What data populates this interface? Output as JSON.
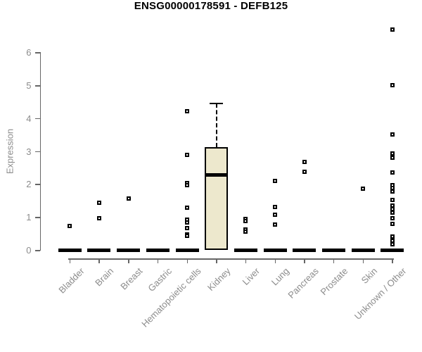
{
  "title": "ENSG00000178591 - DEFB125",
  "chart_data": {
    "type": "boxplot",
    "title": "ENSG00000178591 - DEFB125",
    "xlabel": "",
    "ylabel": "Expression",
    "ylim": [
      0,
      6.8
    ],
    "yticks": [
      0,
      1,
      2,
      3,
      4,
      5,
      6
    ],
    "grid": false,
    "legend": "none",
    "categories": [
      "Bladder",
      "Brain",
      "Breast",
      "Gastric",
      "Hematopoietic cells",
      "Kidney",
      "Liver",
      "Lung",
      "Pancreas",
      "Prostate",
      "Skin",
      "Unknown / Other"
    ],
    "boxes": [
      {
        "category": "Bladder",
        "q1": 0,
        "median": 0,
        "q3": 0,
        "whisker_low": 0,
        "whisker_high": 0,
        "outliers": [
          0.72
        ]
      },
      {
        "category": "Brain",
        "q1": 0,
        "median": 0,
        "q3": 0,
        "whisker_low": 0,
        "whisker_high": 0,
        "outliers": [
          1.43,
          0.96
        ]
      },
      {
        "category": "Breast",
        "q1": 0,
        "median": 0,
        "q3": 0,
        "whisker_low": 0,
        "whisker_high": 0,
        "outliers": [
          1.55
        ]
      },
      {
        "category": "Gastric",
        "q1": 0,
        "median": 0,
        "q3": 0,
        "whisker_low": 0,
        "whisker_high": 0,
        "outliers": []
      },
      {
        "category": "Hematopoietic cells",
        "q1": 0,
        "median": 0,
        "q3": 0,
        "whisker_low": 0,
        "whisker_high": 0,
        "outliers": [
          4.22,
          2.88,
          2.02,
          1.97,
          1.28,
          0.92,
          0.84,
          0.67,
          0.48,
          0.42
        ]
      },
      {
        "category": "Kidney",
        "q1": 0,
        "median": 2.27,
        "q3": 3.12,
        "whisker_low": 0,
        "whisker_high": 4.45,
        "outliers": []
      },
      {
        "category": "Liver",
        "q1": 0,
        "median": 0,
        "q3": 0,
        "whisker_low": 0,
        "whisker_high": 0,
        "outliers": [
          0.95,
          0.87,
          0.63,
          0.55
        ]
      },
      {
        "category": "Lung",
        "q1": 0,
        "median": 0,
        "q3": 0,
        "whisker_low": 0,
        "whisker_high": 0,
        "outliers": [
          2.1,
          1.3,
          1.07,
          0.76
        ]
      },
      {
        "category": "Pancreas",
        "q1": 0,
        "median": 0,
        "q3": 0,
        "whisker_low": 0,
        "whisker_high": 0,
        "outliers": [
          2.68,
          2.38
        ]
      },
      {
        "category": "Prostate",
        "q1": 0,
        "median": 0,
        "q3": 0,
        "whisker_low": 0,
        "whisker_high": 0,
        "outliers": []
      },
      {
        "category": "Skin",
        "q1": 0,
        "median": 0,
        "q3": 0,
        "whisker_low": 0,
        "whisker_high": 0,
        "outliers": [
          1.86
        ]
      },
      {
        "category": "Unknown / Other",
        "q1": 0,
        "median": 0,
        "q3": 0,
        "whisker_low": 0,
        "whisker_high": 0,
        "outliers": [
          6.68,
          5.0,
          3.5,
          2.92,
          2.79,
          2.35,
          1.96,
          1.87,
          1.78,
          1.52,
          1.35,
          1.25,
          1.13,
          0.97,
          0.78,
          0.4,
          0.28,
          0.18
        ]
      }
    ],
    "colors": {
      "box_fill": "#EDE8CD",
      "box_border": "#000000",
      "median": "#000000",
      "outlier": "#000000",
      "axis": "#666666",
      "tick_label": "#8c8c8c",
      "title": "#000000",
      "background": "#ffffff"
    }
  }
}
